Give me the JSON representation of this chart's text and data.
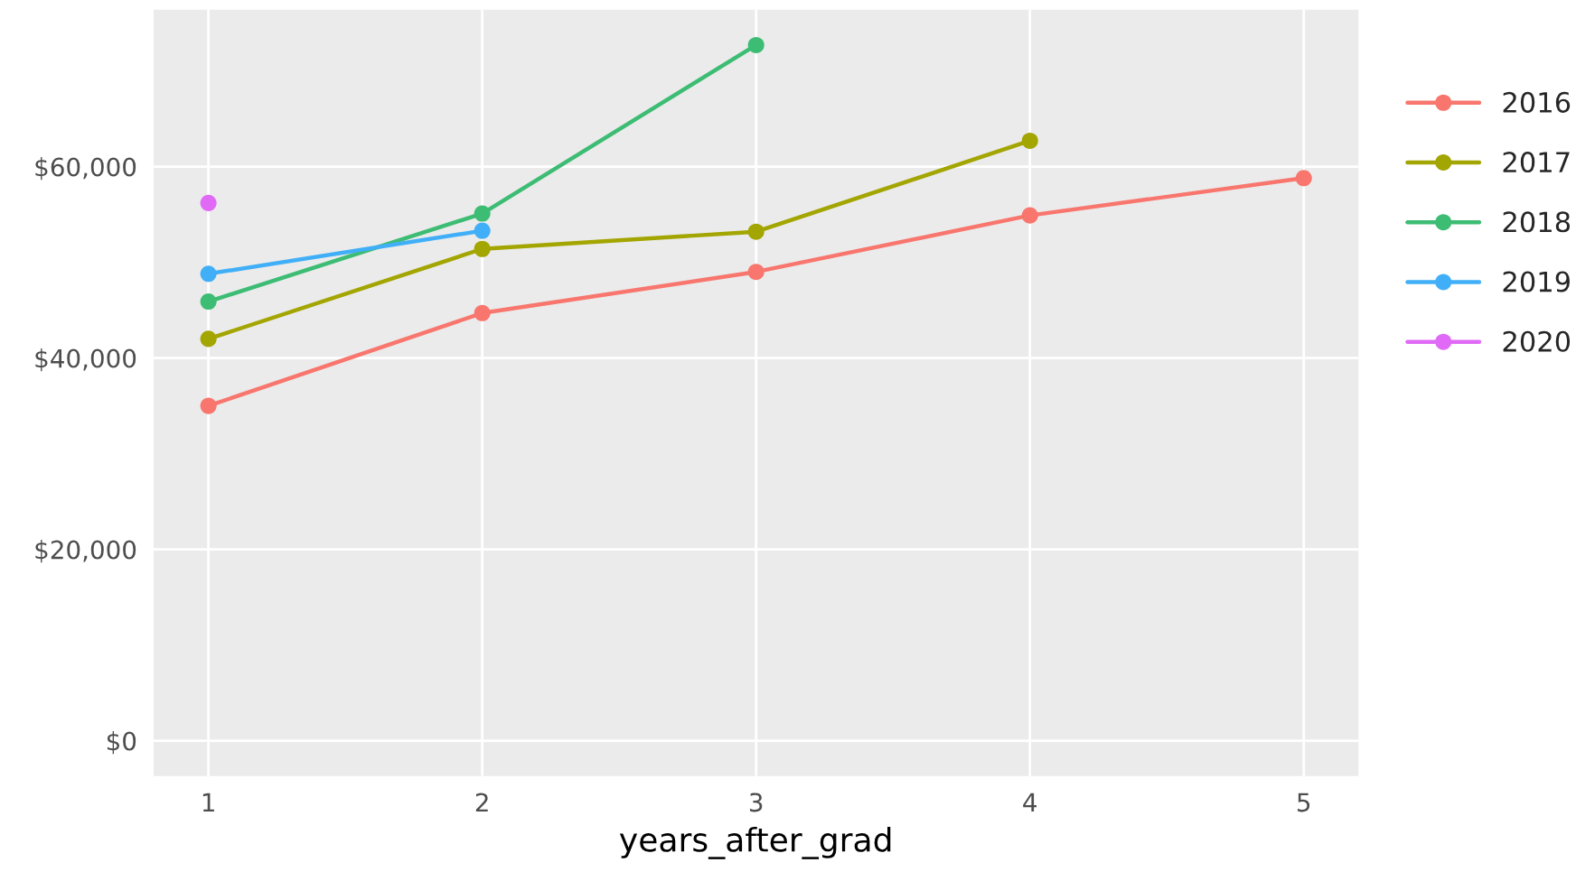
{
  "chart_data": {
    "type": "line",
    "xlabel": "years_after_grad",
    "x": [
      1,
      2,
      3,
      4,
      5
    ],
    "series": [
      {
        "name": "2016",
        "color": "#f8766d",
        "values": [
          35000,
          44700,
          49000,
          54900,
          58800
        ]
      },
      {
        "name": "2017",
        "color": "#a3a500",
        "values": [
          42000,
          51400,
          53200,
          62700,
          null
        ]
      },
      {
        "name": "2018",
        "color": "#3dbc74",
        "values": [
          45900,
          55100,
          72700,
          null,
          null
        ]
      },
      {
        "name": "2019",
        "color": "#41aff7",
        "values": [
          48800,
          53300,
          null,
          null,
          null
        ]
      },
      {
        "name": "2020",
        "color": "#e06af6",
        "values": [
          56200,
          null,
          null,
          null,
          null
        ]
      }
    ],
    "xlim": [
      0.8,
      5.2
    ],
    "xticks": [
      1,
      2,
      3,
      4,
      5
    ],
    "ylim": [
      -3700,
      76400
    ],
    "yticks": [
      {
        "value": 0,
        "label": "$0"
      },
      {
        "value": 20000,
        "label": "$20,000"
      },
      {
        "value": 40000,
        "label": "$40,000"
      },
      {
        "value": 60000,
        "label": "$60,000"
      }
    ],
    "grid": true,
    "legend": "right",
    "marker": "circle",
    "line_style": "solid"
  }
}
